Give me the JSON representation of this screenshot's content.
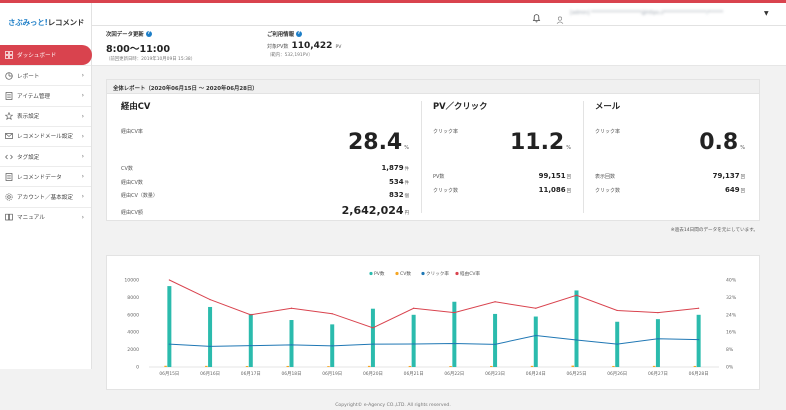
{
  "brand": {
    "name_a": "さぶみっと!",
    "name_b": "レコメンド"
  },
  "colors": {
    "accent": "#d9434e",
    "brand_blue": "#1d7ec7",
    "pv": "#2bbbad",
    "cv": "#f5a623",
    "click_rate": "#1f77b4",
    "cv_rate": "#d9434e"
  },
  "sidebar": {
    "items": [
      {
        "label": "ダッシュボード",
        "icon": "dashboard-icon",
        "active": true
      },
      {
        "label": "レポート",
        "icon": "pie-chart-icon"
      },
      {
        "label": "アイテム管理",
        "icon": "document-icon"
      },
      {
        "label": "表示設定",
        "icon": "star-icon"
      },
      {
        "label": "レコメンドメール設定",
        "icon": "mail-icon"
      },
      {
        "label": "タグ設定",
        "icon": "code-icon"
      },
      {
        "label": "レコメンドデータ",
        "icon": "document-icon"
      },
      {
        "label": "アカウント／基本設定",
        "icon": "gear-icon"
      },
      {
        "label": "マニュアル",
        "icon": "book-icon"
      }
    ]
  },
  "header": {
    "user_text": "[admin]  ********************@https://*****************/******"
  },
  "info": {
    "next_update_label": "次回データ更新",
    "next_update_time": "8:00～11:00",
    "last_update": "（前回更新日時：2019年10月09日 15:38）",
    "usage_label": "ご利用情報",
    "pv_key": "対象PV数",
    "pv_value": "110,422",
    "pv_unit": "PV",
    "pv_sub": "（範内：532,191PV）"
  },
  "report": {
    "title": "全体レポート（2020年06月15日 ～ 2020年06月28日）",
    "cv": {
      "title": "経由CV",
      "rate_label": "経由CV率",
      "rate": "28.4",
      "rate_unit": "%",
      "rows": [
        {
          "label": "CV数",
          "value": "1,879",
          "unit": "件"
        },
        {
          "label": "経由CV数",
          "value": "534",
          "unit": "件"
        },
        {
          "label": "経由CV（数量）",
          "value": "832",
          "unit": "個"
        },
        {
          "label": "経由CV額",
          "value": "2,642,024",
          "unit": "円"
        }
      ]
    },
    "pv": {
      "title": "PV／クリック",
      "rate_label": "クリック率",
      "rate": "11.2",
      "rate_unit": "%",
      "rows": [
        {
          "label": "PV数",
          "value": "99,151",
          "unit": "回"
        },
        {
          "label": "クリック数",
          "value": "11,086",
          "unit": "回"
        }
      ]
    },
    "mail": {
      "title": "メール",
      "rate_label": "クリック率",
      "rate": "0.8",
      "rate_unit": "%",
      "rows": [
        {
          "label": "表示回数",
          "value": "79,137",
          "unit": "回"
        },
        {
          "label": "クリック数",
          "value": "649",
          "unit": "回"
        }
      ]
    },
    "note": "※過去14日間のデータを元にしています。"
  },
  "chart_data": {
    "type": "bar",
    "categories": [
      "06月15日",
      "06月16日",
      "06月17日",
      "06月18日",
      "06月19日",
      "06月20日",
      "06月21日",
      "06月22日",
      "06月23日",
      "06月24日",
      "06月25日",
      "06月26日",
      "06月27日",
      "06月28日"
    ],
    "legend": [
      "PV数",
      "CV数",
      "クリック率",
      "経由CV率"
    ],
    "series": [
      {
        "name": "PV数",
        "type": "bar",
        "axis": "left",
        "values": [
          9300,
          6900,
          6100,
          5400,
          4900,
          6700,
          6000,
          7500,
          6100,
          5800,
          8800,
          5200,
          5500,
          6000
        ]
      },
      {
        "name": "CV数",
        "type": "bar",
        "axis": "left",
        "values": [
          140,
          130,
          110,
          120,
          100,
          130,
          120,
          110,
          120,
          130,
          160,
          120,
          130,
          120
        ]
      },
      {
        "name": "クリック率",
        "type": "line",
        "axis": "right",
        "values": [
          10.5,
          9.5,
          9.8,
          10.2,
          9.7,
          10.5,
          10.6,
          10.8,
          10.4,
          14.5,
          12.4,
          10.5,
          13.0,
          12.6
        ]
      },
      {
        "name": "経由CV率",
        "type": "line",
        "axis": "right",
        "values": [
          40,
          31,
          24,
          27,
          24.5,
          18,
          27,
          25,
          30,
          27,
          33,
          26,
          25,
          27
        ]
      }
    ],
    "ylim_left": [
      0,
      10000
    ],
    "yticks_left": [
      "0",
      "2000",
      "4000",
      "6000",
      "8000",
      "10000"
    ],
    "ylim_right": [
      0,
      40
    ],
    "yticks_right": [
      "0%",
      "8%",
      "16%",
      "24%",
      "32%",
      "40%"
    ],
    "legend_position": "top-center",
    "grid": false
  },
  "footer": "Copyright© e-Agency CO.,LTD. All rights reserved."
}
